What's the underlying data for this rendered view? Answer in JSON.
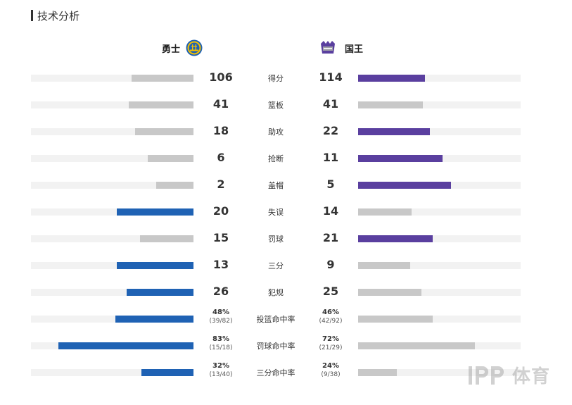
{
  "section": {
    "title": "技术分析"
  },
  "teams": {
    "left": {
      "name": "勇士",
      "logo": "warriors-logo",
      "accent": "#1f62b4"
    },
    "right": {
      "name": "国王",
      "logo": "kings-logo",
      "accent": "#5a3f9f"
    }
  },
  "colors": {
    "neutral": "#c8c8c8",
    "track": "#f2f2f2"
  },
  "stats": [
    {
      "label": "得分",
      "left": "106",
      "right": "114",
      "left_level": 0.38,
      "right_level": 0.41,
      "leader": "right"
    },
    {
      "label": "篮板",
      "left": "41",
      "right": "41",
      "left_level": 0.4,
      "right_level": 0.4,
      "leader": "none"
    },
    {
      "label": "助攻",
      "left": "18",
      "right": "22",
      "left_level": 0.36,
      "right_level": 0.44,
      "leader": "right"
    },
    {
      "label": "抢断",
      "left": "6",
      "right": "11",
      "left_level": 0.28,
      "right_level": 0.52,
      "leader": "right"
    },
    {
      "label": "盖帽",
      "left": "2",
      "right": "5",
      "left_level": 0.23,
      "right_level": 0.57,
      "leader": "right"
    },
    {
      "label": "失误",
      "left": "20",
      "right": "14",
      "left_level": 0.47,
      "right_level": 0.33,
      "leader": "left"
    },
    {
      "label": "罚球",
      "left": "15",
      "right": "21",
      "left_level": 0.33,
      "right_level": 0.46,
      "leader": "right"
    },
    {
      "label": "三分",
      "left": "13",
      "right": "9",
      "left_level": 0.47,
      "right_level": 0.32,
      "leader": "left"
    },
    {
      "label": "犯规",
      "left": "26",
      "right": "25",
      "left_level": 0.41,
      "right_level": 0.39,
      "leader": "left"
    }
  ],
  "pct_stats": [
    {
      "label": "投篮命中率",
      "left_pct": "48%",
      "left_sub": "(39/82)",
      "right_pct": "46%",
      "right_sub": "(42/92)",
      "left_level": 0.48,
      "right_level": 0.46,
      "leader": "left"
    },
    {
      "label": "罚球命中率",
      "left_pct": "83%",
      "left_sub": "(15/18)",
      "right_pct": "72%",
      "right_sub": "(21/29)",
      "left_level": 0.83,
      "right_level": 0.72,
      "leader": "left"
    },
    {
      "label": "三分命中率",
      "left_pct": "32%",
      "left_sub": "(13/40)",
      "right_pct": "24%",
      "right_sub": "(9/38)",
      "left_level": 0.32,
      "right_level": 0.24,
      "leader": "left"
    }
  ],
  "watermark": {
    "text": "体育",
    "icon": "pp-logo"
  }
}
